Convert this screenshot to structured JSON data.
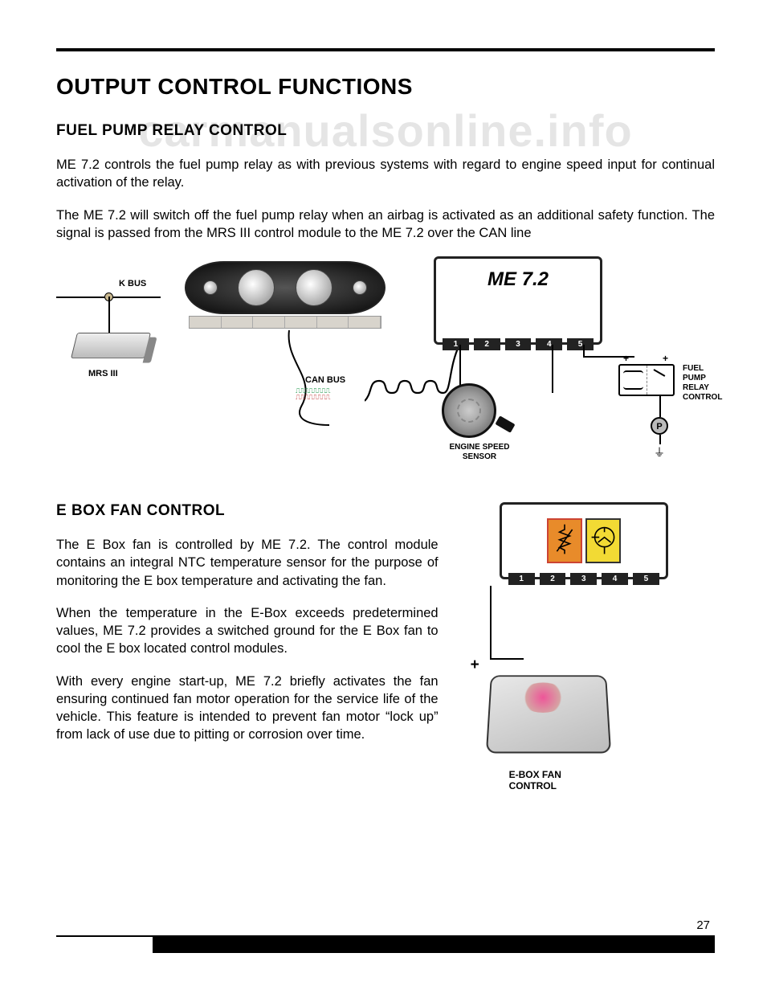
{
  "page": {
    "title": "OUTPUT CONTROL FUNCTIONS",
    "number": "27",
    "watermark": "carmanualsonline.info"
  },
  "section1": {
    "heading": "FUEL PUMP RELAY CONTROL",
    "para1": "ME 7.2 controls the fuel pump relay as with previous systems with regard to engine speed input for continual activation of the relay.",
    "para2": "The ME 7.2 will  switch off the fuel pump relay when an airbag is activated as an additional safety function. The signal is passed from the MRS III control module to the ME 7.2 over the CAN line"
  },
  "figure1": {
    "kbus_label": "K BUS",
    "mrs_label": "MRS III",
    "canbus_label": "CAN BUS",
    "me72_label": "ME 7.2",
    "headers": [
      "1",
      "2",
      "3",
      "4",
      "5"
    ],
    "speed_sensor_label": "ENGINE SPEED\nSENSOR",
    "relay_label": "FUEL\nPUMP\nRELAY\nCONTROL",
    "pump_label": "P",
    "plus": "+",
    "colors": {
      "bus_dot": "#c9b88f",
      "can_green": "#0b8c3a",
      "can_red": "#c03a3a"
    }
  },
  "section2": {
    "heading": "E BOX FAN CONTROL",
    "para1": "The E Box fan is controlled by ME 7.2. The control module contains an integral NTC temperature sensor for the purpose of monitoring the E box temperature and activating the fan.",
    "para2": "When the temperature in the E-Box exceeds predetermined values, ME 7.2 provides a switched ground for the E Box fan to cool the E box located control modules.",
    "para3": "With every engine start-up, ME 7.2 briefly activates the fan ensuring continued fan motor operation for the service life of the vehicle.   This feature is intended to prevent fan motor “lock up” from lack of use due to pitting or corrosion over time."
  },
  "figure2": {
    "headers": [
      "1",
      "2",
      "3",
      "4",
      "5"
    ],
    "plus": "+",
    "fan_label": "E-BOX FAN\nCONTROL",
    "colors": {
      "ntc_box": "#e88b2a",
      "ntc_border": "#cc4433",
      "transistor_box": "#f2da34"
    }
  }
}
